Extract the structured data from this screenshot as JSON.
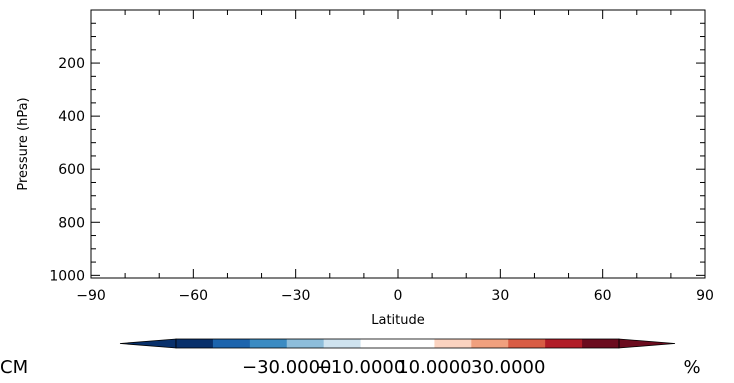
{
  "chart_data": {
    "type": "heatmap",
    "title": "",
    "xlabel": "Latitude",
    "ylabel": "Pressure (hPa)",
    "xlim": [
      -90,
      90
    ],
    "ylim": [
      1010,
      0
    ],
    "y_inverted": true,
    "x_ticks": [
      -90,
      -60,
      -30,
      0,
      30,
      60,
      90
    ],
    "x_tick_labels": [
      "−90",
      "−60",
      "−30",
      "0",
      "30",
      "60",
      "90"
    ],
    "y_ticks": [
      200,
      400,
      600,
      800,
      1000
    ],
    "y_tick_labels": [
      "200",
      "400",
      "600",
      "800",
      "1000"
    ],
    "field": "empty",
    "colorbar": {
      "colors": [
        "#08306b",
        "#1c64ad",
        "#3b8bc2",
        "#8dbdda",
        "#cfe3ef",
        "#ffffff",
        "#ffffff",
        "#fbd3c0",
        "#f0a07e",
        "#d85c44",
        "#b11c27",
        "#6b0b1e"
      ],
      "under_color": "#08306b",
      "over_color": "#6b0b1e",
      "tick_labels": [
        "−30.0000",
        "−10.0000",
        "10.0000",
        "30.0000"
      ],
      "tick_values": [
        -30,
        -10,
        10,
        30
      ],
      "unit": "%",
      "left_label": "CM"
    }
  }
}
